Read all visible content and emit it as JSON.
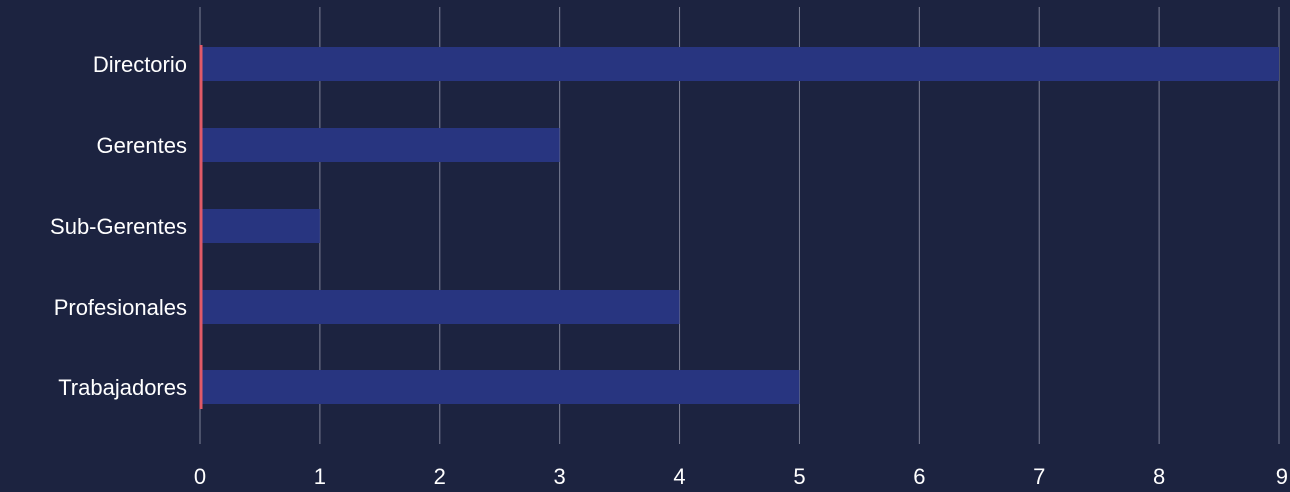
{
  "chart_data": {
    "type": "bar",
    "orientation": "horizontal",
    "categories": [
      "Directorio",
      "Gerentes",
      "Sub-Gerentes",
      "Profesionales",
      "Trabajadores"
    ],
    "values": [
      9,
      3,
      1,
      4,
      5
    ],
    "xlim": [
      0,
      9
    ],
    "xticks": [
      "0",
      "1",
      "2",
      "3",
      "4",
      "5",
      "6",
      "7",
      "8",
      "9"
    ],
    "grid": "vertical",
    "title": "",
    "xlabel": "",
    "ylabel": "",
    "colors": {
      "background": "#1c2340",
      "bar": "#283580",
      "baseline": "#e05a67",
      "grid": "#7d8196",
      "text": "#ffffff"
    }
  }
}
